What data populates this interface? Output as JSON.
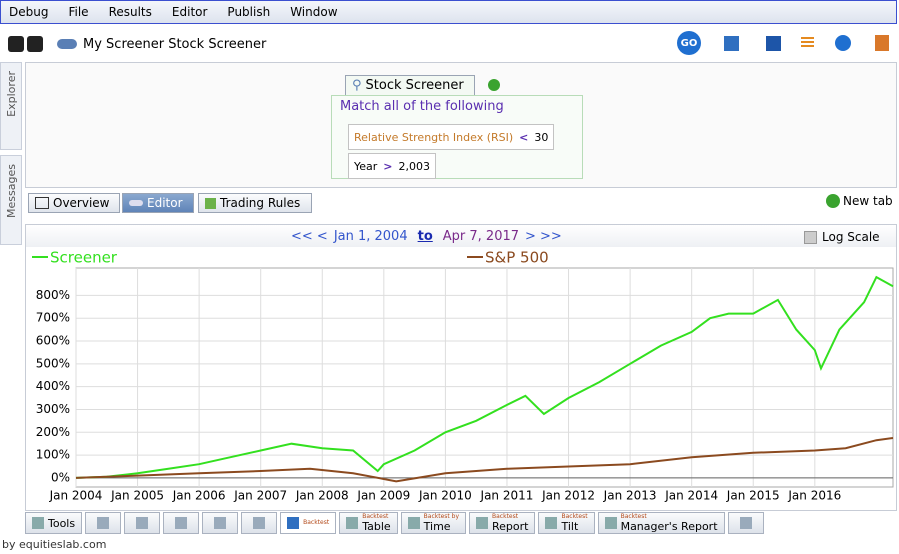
{
  "menu": [
    "Debug",
    "File",
    "Results",
    "Editor",
    "Publish",
    "Window"
  ],
  "toolbar": {
    "title": "My Screener Stock Screener",
    "go": "GO"
  },
  "sidebar": [
    "Explorer",
    "Messages"
  ],
  "screener": {
    "tab": "Stock Screener",
    "heading": "Match all of the following",
    "rules": [
      {
        "field": "Relative Strength Index (RSI)",
        "op": "<",
        "value": 30
      },
      {
        "field": "Year",
        "op": ">",
        "value": "2,003"
      }
    ]
  },
  "view_tabs": [
    "Overview",
    "Editor",
    "Trading Rules"
  ],
  "new_tab": "New tab",
  "range": {
    "prev": "<< <",
    "start": "Jan 1, 2004",
    "to": "to",
    "end": "Apr 7, 2017",
    "next": "> >>"
  },
  "log_scale": "Log Scale",
  "chart_data": {
    "type": "line",
    "xlim": [
      2004,
      2017.27
    ],
    "xticks": [
      {
        "value": 2004,
        "label": "Jan 2004"
      },
      {
        "value": 2005,
        "label": "Jan 2005"
      },
      {
        "value": 2006,
        "label": "Jan 2006"
      },
      {
        "value": 2007,
        "label": "Jan 2007"
      },
      {
        "value": 2008,
        "label": "Jan 2008"
      },
      {
        "value": 2009,
        "label": "Jan 2009"
      },
      {
        "value": 2010,
        "label": "Jan 2010"
      },
      {
        "value": 2011,
        "label": "Jan 2011"
      },
      {
        "value": 2012,
        "label": "Jan 2012"
      },
      {
        "value": 2013,
        "label": "Jan 2013"
      },
      {
        "value": 2014,
        "label": "Jan 2014"
      },
      {
        "value": 2015,
        "label": "Jan 2015"
      },
      {
        "value": 2016,
        "label": "Jan 2016"
      }
    ],
    "ylim": [
      -40,
      920
    ],
    "yticks": [
      {
        "value": 0,
        "label": "0%"
      },
      {
        "value": 100,
        "label": "100%"
      },
      {
        "value": 200,
        "label": "200%"
      },
      {
        "value": 300,
        "label": "300%"
      },
      {
        "value": 400,
        "label": "400%"
      },
      {
        "value": 500,
        "label": "500%"
      },
      {
        "value": 600,
        "label": "600%"
      },
      {
        "value": 700,
        "label": "700%"
      },
      {
        "value": 800,
        "label": "800%"
      }
    ],
    "grid": true,
    "series": [
      {
        "name": "Screener",
        "color": "#33e01f",
        "x": [
          2004,
          2004.5,
          2005,
          2005.5,
          2006,
          2006.5,
          2007,
          2007.5,
          2008,
          2008.5,
          2008.9,
          2009,
          2009.5,
          2010,
          2010.5,
          2011,
          2011.3,
          2011.6,
          2012,
          2012.5,
          2013,
          2013.5,
          2014,
          2014.3,
          2014.6,
          2015,
          2015.4,
          2015.7,
          2016,
          2016.1,
          2016.4,
          2016.8,
          2017,
          2017.27
        ],
        "values": [
          0,
          5,
          20,
          40,
          60,
          90,
          120,
          150,
          130,
          120,
          30,
          60,
          120,
          200,
          250,
          320,
          360,
          280,
          350,
          420,
          500,
          580,
          640,
          700,
          720,
          720,
          780,
          650,
          560,
          480,
          650,
          770,
          880,
          840
        ]
      },
      {
        "name": "S&P 500",
        "color": "#8b4a1f",
        "x": [
          2004,
          2005,
          2006,
          2007,
          2007.8,
          2008.5,
          2009.2,
          2010,
          2011,
          2012,
          2013,
          2014,
          2015,
          2016,
          2016.5,
          2017,
          2017.27
        ],
        "values": [
          0,
          10,
          20,
          30,
          40,
          20,
          -15,
          20,
          40,
          50,
          60,
          90,
          110,
          120,
          130,
          165,
          175
        ]
      }
    ]
  },
  "bottom_tabs": [
    {
      "label": "Tools"
    },
    {
      "sub": "Backtest",
      "label": ""
    },
    {
      "sub": "Backtest",
      "label": "Table"
    },
    {
      "sub": "Backtest by",
      "label": "Time"
    },
    {
      "sub": "Backtest",
      "label": "Report"
    },
    {
      "sub": "Backtest",
      "label": "Tilt"
    },
    {
      "sub": "Backtest",
      "label": "Manager's Report"
    }
  ],
  "footer": "by equitieslab.com"
}
